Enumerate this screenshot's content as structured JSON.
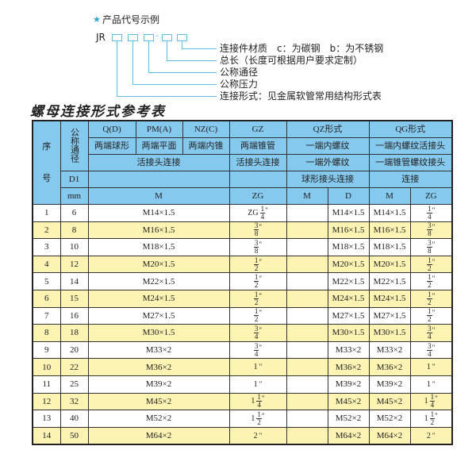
{
  "diagram": {
    "heading": "产品代号示例",
    "code_prefix": "JR",
    "separator": "-",
    "labels": [
      "连接件材质　c：为碳钢　b：为不锈钢",
      "总长（长度可根据用户要求定制）",
      "公称通径",
      "公称压力",
      "连接形式：见金属软管常用结构形式表"
    ],
    "accent_color": "#2aa6d6"
  },
  "title": "螺母连接形式参考表",
  "table": {
    "colors": {
      "header": "#86c9ee",
      "stripe": "#fdf3b3"
    },
    "header": {
      "seq": "序",
      "seq2": "号",
      "dn": "公称通径",
      "r1": [
        "Q(D)",
        "PM(A)",
        "NZ(C)",
        "GZ",
        "QZ形式",
        "QG形式"
      ],
      "r2": [
        "两端球形",
        "两端平面",
        "两端内锥",
        "两端锥管",
        "一端内螺纹",
        "一端内螺纹活接头"
      ],
      "r3": [
        "活接头连接",
        "活接头连接",
        "一端外螺纹",
        "一端锥管螺纹接头"
      ],
      "r4": [
        "D1",
        "",
        "",
        "球形接头连接",
        "连接"
      ],
      "r5": [
        "mm",
        "M",
        "ZG",
        "M",
        "D",
        "M",
        "ZG"
      ]
    },
    "rows": [
      {
        "no": "1",
        "dn": "6",
        "m": "M14×1.5",
        "zg": {
          "w": "ZG",
          "n": "1",
          "d": "4"
        },
        "qz_m": "",
        "qz_d": "M14×1.5",
        "qg_m": "M14×1.5",
        "qg_zg": {
          "w": "",
          "n": "1",
          "d": "4"
        }
      },
      {
        "no": "2",
        "dn": "8",
        "m": "M16×1.5",
        "zg": {
          "w": "",
          "n": "3",
          "d": "8"
        },
        "qz_m": "",
        "qz_d": "M16×1.5",
        "qg_m": "M16×1.5",
        "qg_zg": {
          "w": "",
          "n": "3",
          "d": "8"
        }
      },
      {
        "no": "3",
        "dn": "10",
        "m": "M18×1.5",
        "zg": {
          "w": "",
          "n": "3",
          "d": "8"
        },
        "qz_m": "",
        "qz_d": "M18×1.5",
        "qg_m": "M18×1.5",
        "qg_zg": {
          "w": "",
          "n": "3",
          "d": "8"
        }
      },
      {
        "no": "4",
        "dn": "12",
        "m": "M20×1.5",
        "zg": {
          "w": "",
          "n": "1",
          "d": "2"
        },
        "qz_m": "",
        "qz_d": "M20×1.5",
        "qg_m": "M20×1.5",
        "qg_zg": {
          "w": "",
          "n": "1",
          "d": "2"
        }
      },
      {
        "no": "5",
        "dn": "14",
        "m": "M22×1.5",
        "zg": {
          "w": "",
          "n": "1",
          "d": "2"
        },
        "qz_m": "",
        "qz_d": "M22×1.5",
        "qg_m": "M22×1.5",
        "qg_zg": {
          "w": "",
          "n": "1",
          "d": "2"
        }
      },
      {
        "no": "6",
        "dn": "15",
        "m": "M24×1.5",
        "zg": {
          "w": "",
          "n": "1",
          "d": "2"
        },
        "qz_m": "",
        "qz_d": "M24×1.5",
        "qg_m": "M24×1.5",
        "qg_zg": {
          "w": "",
          "n": "1",
          "d": "2"
        }
      },
      {
        "no": "7",
        "dn": "16",
        "m": "M27×1.5",
        "zg": {
          "w": "",
          "n": "1",
          "d": "2"
        },
        "qz_m": "",
        "qz_d": "M27×1.5",
        "qg_m": "M27×1.5",
        "qg_zg": {
          "w": "",
          "n": "1",
          "d": "2"
        }
      },
      {
        "no": "8",
        "dn": "18",
        "m": "M30×1.5",
        "zg": {
          "w": "",
          "n": "3",
          "d": "4"
        },
        "qz_m": "",
        "qz_d": "M30×1.5",
        "qg_m": "M30×1.5",
        "qg_zg": {
          "w": "",
          "n": "3",
          "d": "4"
        }
      },
      {
        "no": "9",
        "dn": "20",
        "m": "M33×2",
        "zg": {
          "w": "",
          "n": "3",
          "d": "4"
        },
        "qz_m": "",
        "qz_d": "M33×2",
        "qg_m": "M33×2",
        "qg_zg": {
          "w": "",
          "n": "3",
          "d": "4"
        }
      },
      {
        "no": "10",
        "dn": "22",
        "m": "M36×2",
        "zg": {
          "w": "1",
          "n": "",
          "d": ""
        },
        "qz_m": "",
        "qz_d": "M36×2",
        "qg_m": "M36×2",
        "qg_zg": {
          "w": "1",
          "n": "",
          "d": ""
        }
      },
      {
        "no": "11",
        "dn": "25",
        "m": "M39×2",
        "zg": {
          "w": "1",
          "n": "",
          "d": ""
        },
        "qz_m": "",
        "qz_d": "M39×2",
        "qg_m": "M39×2",
        "qg_zg": {
          "w": "1",
          "n": "",
          "d": ""
        }
      },
      {
        "no": "12",
        "dn": "32",
        "m": "M45×2",
        "zg": {
          "w": "1",
          "n": "1",
          "d": "4"
        },
        "qz_m": "",
        "qz_d": "M45×2",
        "qg_m": "M45×2",
        "qg_zg": {
          "w": "1",
          "n": "1",
          "d": "4"
        }
      },
      {
        "no": "13",
        "dn": "40",
        "m": "M52×2",
        "zg": {
          "w": "1",
          "n": "1",
          "d": "2"
        },
        "qz_m": "",
        "qz_d": "M52×2",
        "qg_m": "M52×2",
        "qg_zg": {
          "w": "1",
          "n": "1",
          "d": "2"
        }
      },
      {
        "no": "14",
        "dn": "50",
        "m": "M64×2",
        "zg": {
          "w": "2",
          "n": "",
          "d": ""
        },
        "qz_m": "",
        "qz_d": "M64×2",
        "qg_m": "M64×2",
        "qg_zg": {
          "w": "2",
          "n": "",
          "d": ""
        }
      }
    ],
    "inch_mark": "\""
  }
}
